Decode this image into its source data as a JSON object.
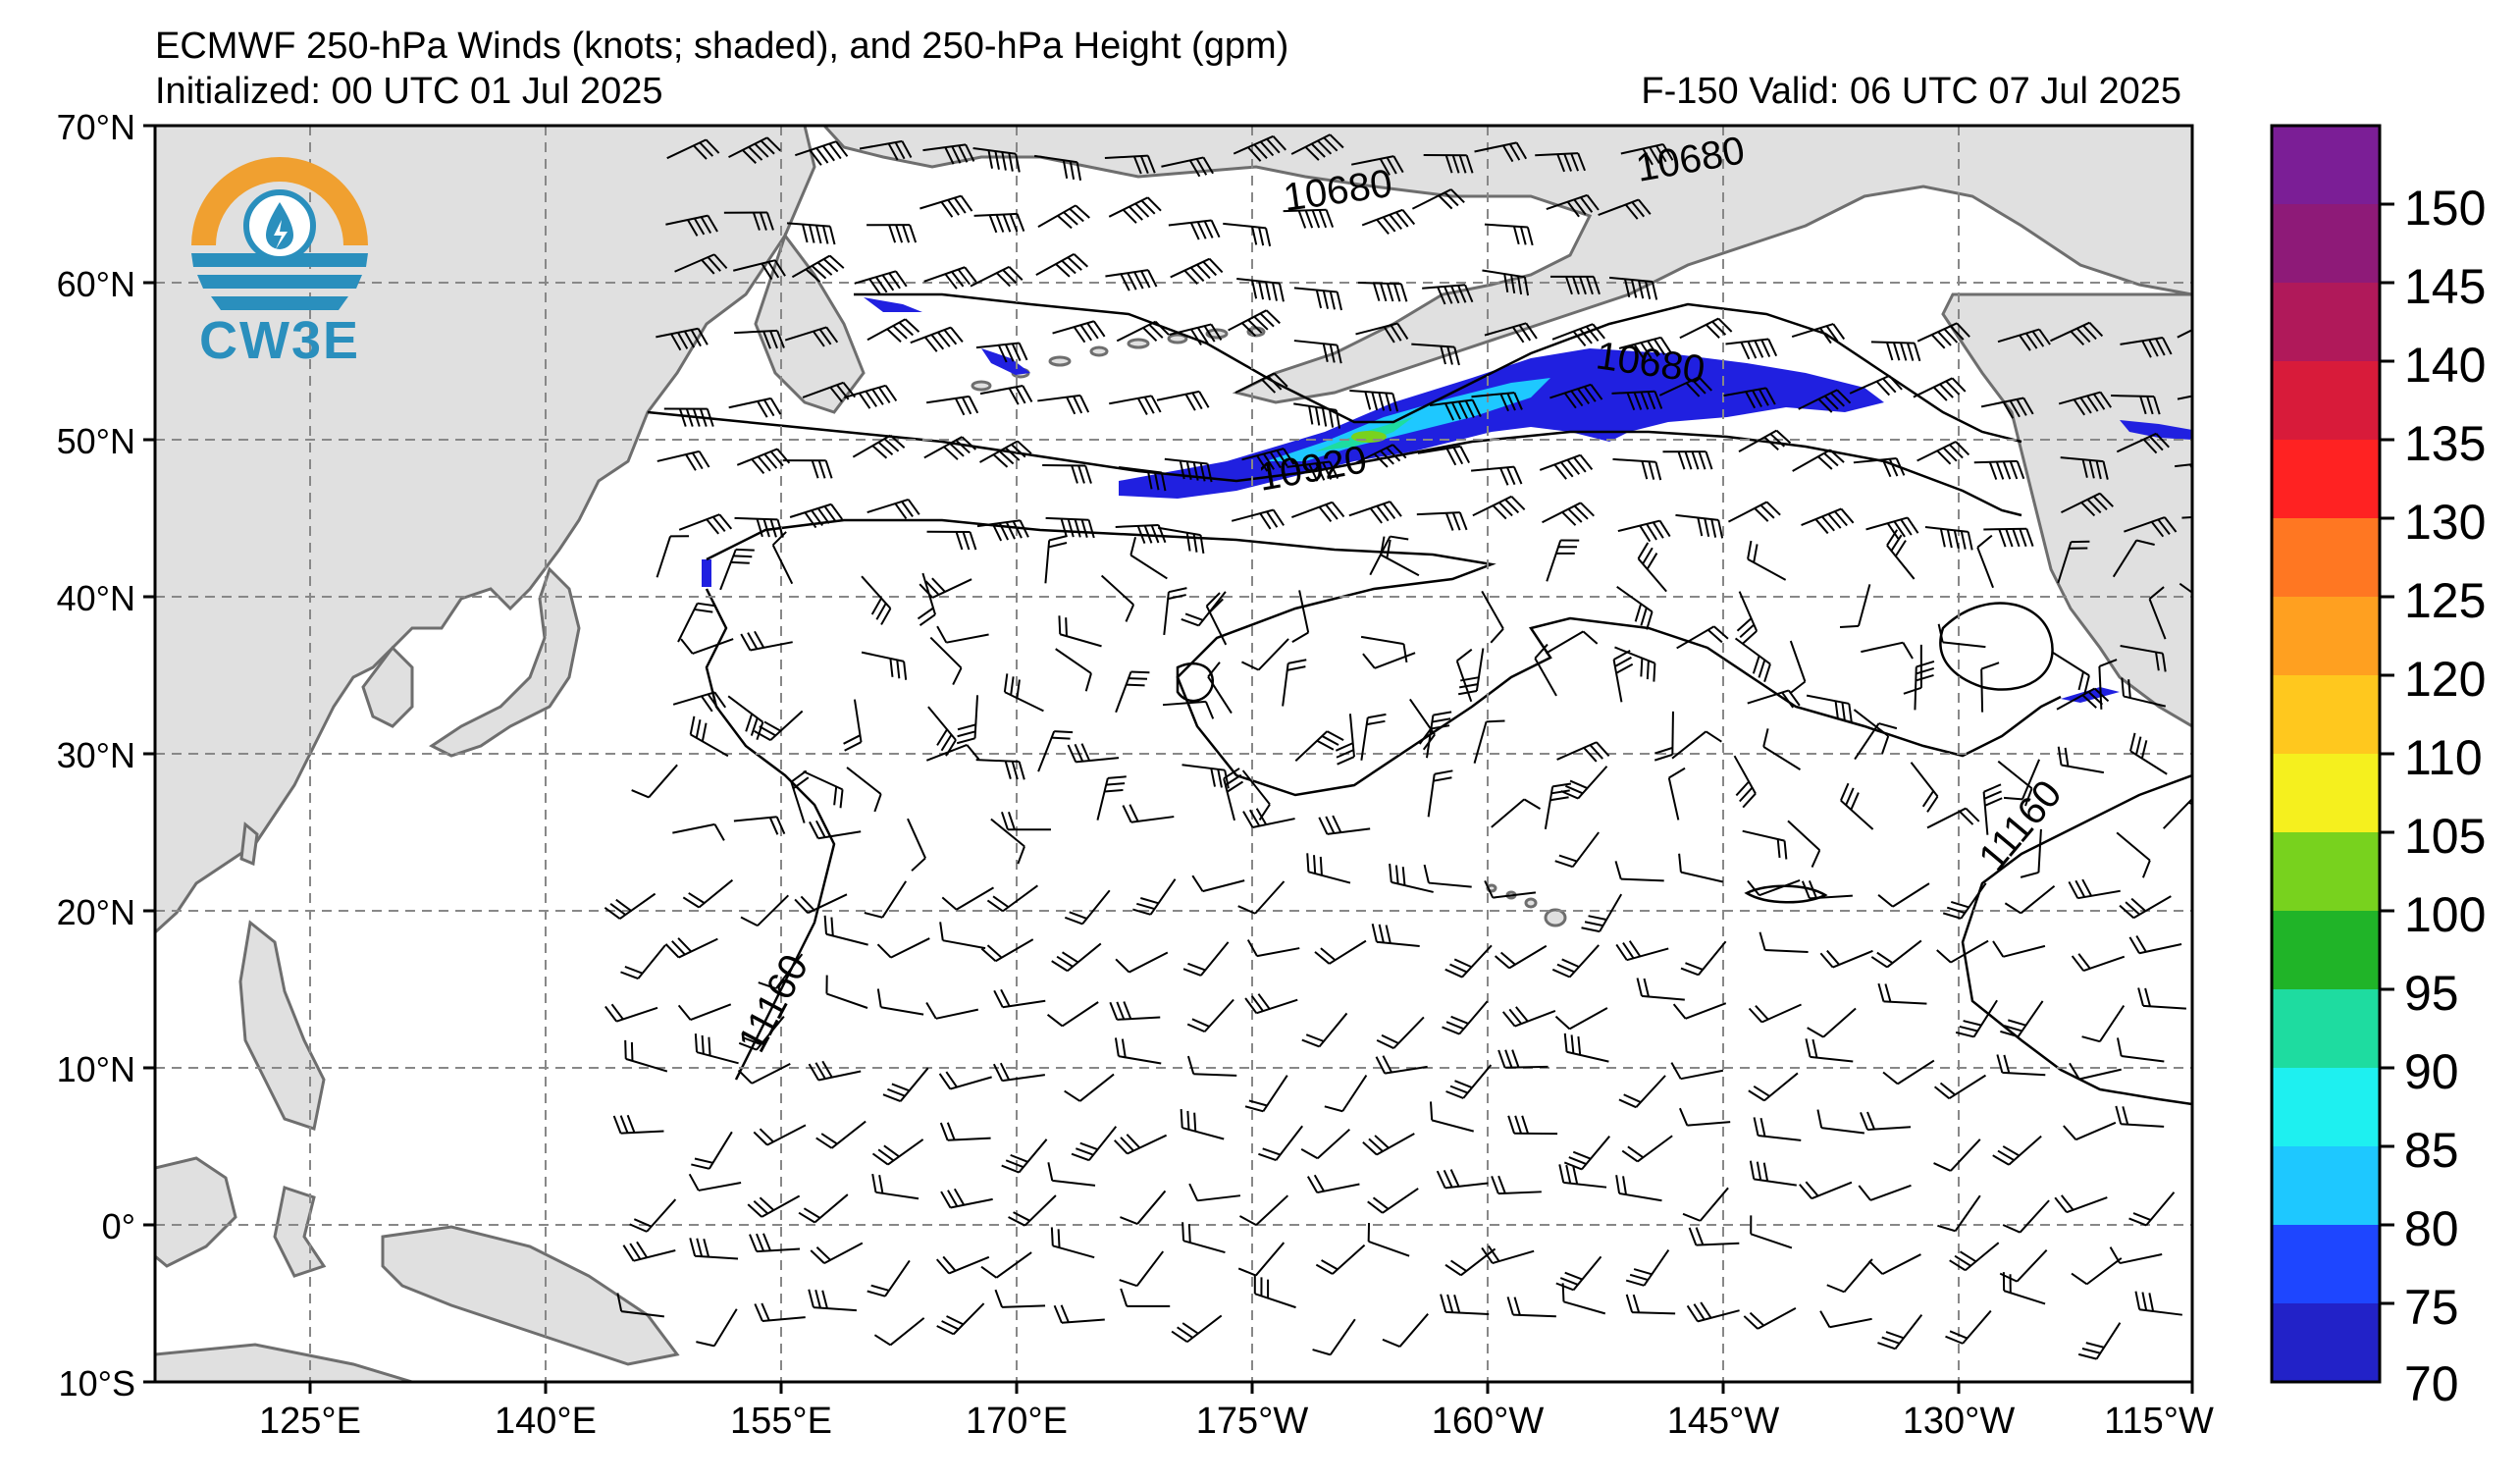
{
  "header": {
    "title": "ECMWF 250-hPa Winds (knots; shaded), and 250-hPa Height (gpm)",
    "initialized": "Initialized: 00 UTC 01 Jul 2025",
    "valid": "F-150  Valid: 06 UTC 07 Jul 2025"
  },
  "logo": {
    "text": "CW3E",
    "icon": "cw3e-logo-icon"
  },
  "axes": {
    "lat_labels": [
      "70°N",
      "60°N",
      "50°N",
      "40°N",
      "30°N",
      "20°N",
      "10°N",
      "0°",
      "10°S"
    ],
    "lon_labels": [
      "125°E",
      "140°E",
      "155°E",
      "170°E",
      "175°W",
      "160°W",
      "145°W",
      "130°W",
      "115°W"
    ]
  },
  "colorbar": {
    "labels": [
      "150",
      "145",
      "140",
      "135",
      "130",
      "125",
      "120",
      "110",
      "105",
      "100",
      "95",
      "90",
      "85",
      "80",
      "75",
      "70"
    ],
    "colors": [
      "#7b1e96",
      "#8e1a78",
      "#b0195a",
      "#d81b3a",
      "#ff2222",
      "#ff7722",
      "#ffa020",
      "#ffc81e",
      "#f5f01e",
      "#78d21e",
      "#20b428",
      "#1edca0",
      "#1ef0f0",
      "#1ec8ff",
      "#1e46ff",
      "#2222c8"
    ]
  },
  "contours": {
    "labels": [
      "10680",
      "10680",
      "10680",
      "10920",
      "11160",
      "11160"
    ]
  },
  "colors": {
    "land": "#e0e0e0",
    "coast": "#6e6e6e",
    "jet_core": "#2020e0",
    "jet_mid": "#1ec8ff",
    "jet_high": "#20b428"
  }
}
